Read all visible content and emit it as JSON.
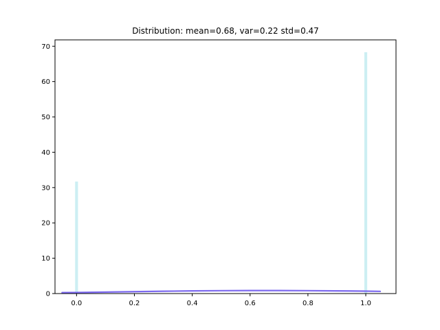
{
  "chart_data": {
    "type": "bar",
    "title": "Distribution: mean=0.68, var=0.22 std=0.47",
    "xlabel": "",
    "ylabel": "",
    "xlim": [
      -0.0745,
      1.1045
    ],
    "ylim": [
      0,
      71.8
    ],
    "x_ticks": [
      0.0,
      0.2,
      0.4,
      0.6,
      0.8,
      1.0
    ],
    "x_tick_labels": [
      "0.0",
      "0.2",
      "0.4",
      "0.6",
      "0.8",
      "1.0"
    ],
    "y_ticks": [
      0,
      10,
      20,
      30,
      40,
      50,
      60,
      70
    ],
    "y_tick_labels": [
      "0",
      "10",
      "20",
      "30",
      "40",
      "50",
      "60",
      "70"
    ],
    "grid": false,
    "series": [
      {
        "type": "bar",
        "color": "#cdeff3",
        "bar_width": 0.01,
        "x": [
          0.0,
          1.0
        ],
        "values": [
          31.7,
          68.3
        ]
      },
      {
        "type": "line",
        "color": "#7b68ee",
        "x": [
          -0.05,
          0.0,
          0.1,
          0.2,
          0.3,
          0.4,
          0.5,
          0.6,
          0.7,
          0.8,
          0.9,
          1.0,
          1.05
        ],
        "values": [
          0.26,
          0.3,
          0.42,
          0.54,
          0.66,
          0.75,
          0.82,
          0.85,
          0.85,
          0.82,
          0.76,
          0.68,
          0.62
        ]
      }
    ]
  }
}
